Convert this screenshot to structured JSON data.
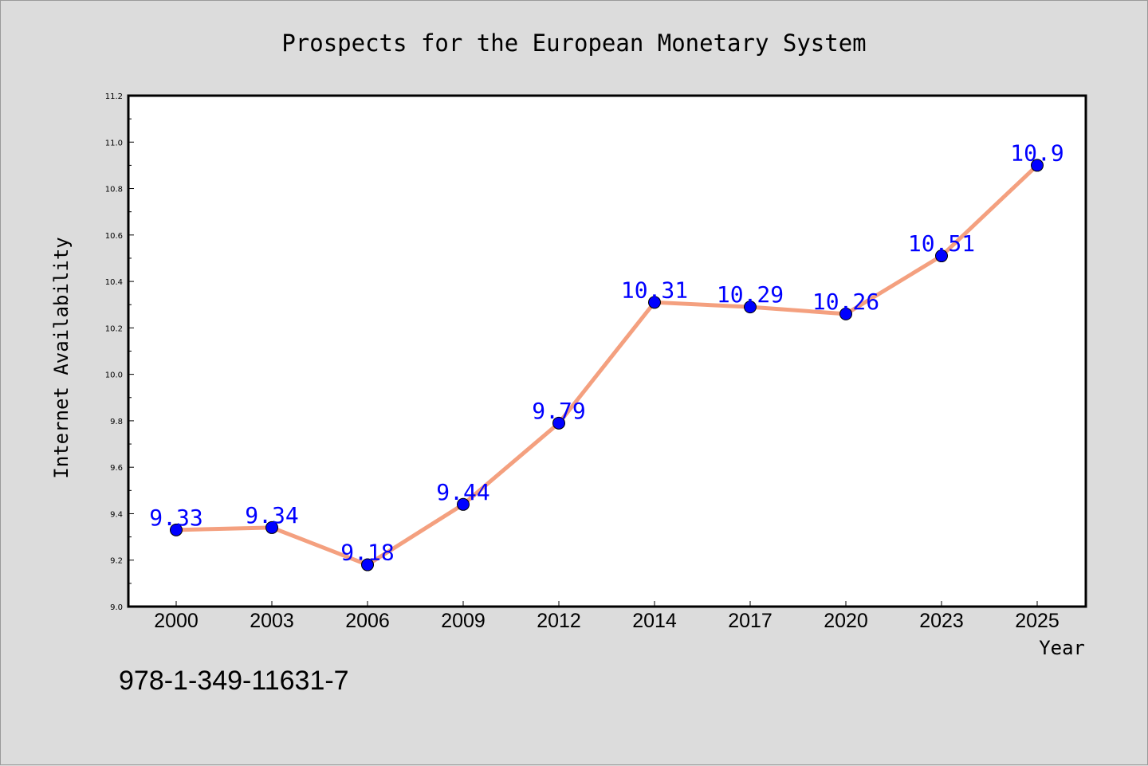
{
  "chart_data": {
    "type": "line",
    "title": "Prospects for the European Monetary System",
    "xlabel": "Year",
    "ylabel": "Internet Availability",
    "categories": [
      "2000",
      "2003",
      "2006",
      "2009",
      "2012",
      "2014",
      "2017",
      "2020",
      "2023",
      "2025"
    ],
    "series": [
      {
        "values": [
          9.33,
          9.34,
          9.18,
          9.44,
          9.79,
          10.31,
          10.29,
          10.26,
          10.51,
          10.9
        ],
        "data_labels": [
          "9.33",
          "9.34",
          "9.18",
          "9.44",
          "9.79",
          "10.31",
          "10.29",
          "10.26",
          "10.51",
          "10.9"
        ]
      }
    ],
    "ylim": [
      9.0,
      11.2
    ],
    "yticks": [
      "9.0",
      "9.2",
      "9.4",
      "9.6",
      "9.8",
      "10.0",
      "10.2",
      "10.4",
      "10.6",
      "10.8",
      "11.0",
      "11.2"
    ],
    "grid": false,
    "colors": {
      "line": "#f4a07f",
      "marker": "#0000ff",
      "label": "#0000ff",
      "background": "#dcdcdc",
      "plot_area": "#ffffff"
    }
  },
  "footnote": "978-1-349-11631-7"
}
